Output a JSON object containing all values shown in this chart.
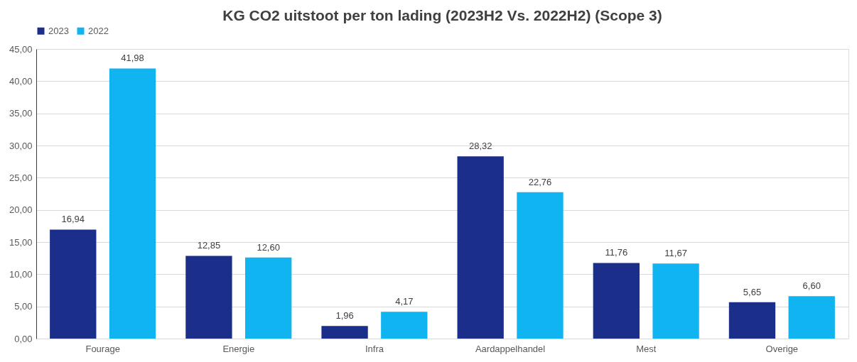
{
  "chart_data": {
    "type": "bar",
    "title": "KG CO2 uitstoot per ton lading (2023H2 Vs. 2022H2) (Scope 3)",
    "categories": [
      "Fourage",
      "Energie",
      "Infra",
      "Aardappelhandel",
      "Mest",
      "Overige"
    ],
    "series": [
      {
        "name": "2023",
        "color": "#1b2f8a",
        "values": [
          16.94,
          12.85,
          1.96,
          28.32,
          11.76,
          5.65
        ],
        "value_labels": [
          "16,94",
          "12,85",
          "1,96",
          "28,32",
          "11,76",
          "5,65"
        ]
      },
      {
        "name": "2022",
        "color": "#10b4f0",
        "values": [
          41.98,
          12.6,
          4.17,
          22.76,
          11.67,
          6.6
        ],
        "value_labels": [
          "41,98",
          "12,60",
          "4,17",
          "22,76",
          "11,67",
          "6,60"
        ]
      }
    ],
    "ylim": [
      0,
      45
    ],
    "yticks": [
      {
        "value": 0,
        "label": "0,00"
      },
      {
        "value": 5,
        "label": "5,00"
      },
      {
        "value": 10,
        "label": "10,00"
      },
      {
        "value": 15,
        "label": "15,00"
      },
      {
        "value": 20,
        "label": "20,00"
      },
      {
        "value": 25,
        "label": "25,00"
      },
      {
        "value": 30,
        "label": "30,00"
      },
      {
        "value": 35,
        "label": "35,00"
      },
      {
        "value": 40,
        "label": "40,00"
      },
      {
        "value": 45,
        "label": "45,00"
      }
    ],
    "grid": "y",
    "legend": "top"
  }
}
